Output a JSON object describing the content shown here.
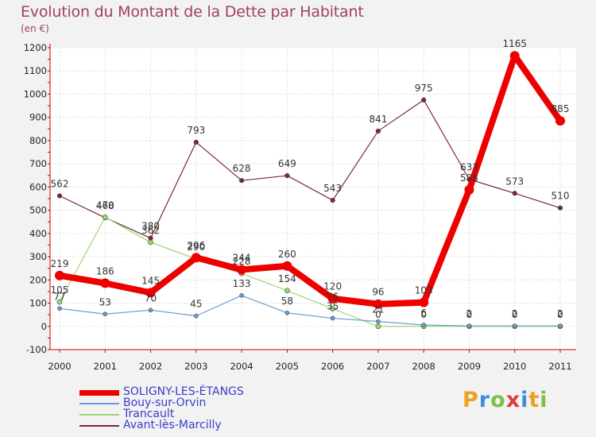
{
  "title": "Evolution du Montant de la Dette par Habitant",
  "unit": "(en €)",
  "brand": {
    "text": "Proxiti",
    "colors": [
      "#f0a020",
      "#3c8fd8",
      "#7cc04c",
      "#e03a3a",
      "#3c8fd8",
      "#f0a020",
      "#7cc04c"
    ]
  },
  "chart_data": {
    "type": "line",
    "x": [
      "2000",
      "2001",
      "2002",
      "2003",
      "2004",
      "2005",
      "2006",
      "2007",
      "2008",
      "2009",
      "2010",
      "2011"
    ],
    "ylim": [
      -100,
      1200
    ],
    "yticks": [
      -100,
      0,
      100,
      200,
      300,
      400,
      500,
      600,
      700,
      800,
      900,
      1000,
      1100,
      1200
    ],
    "grid": true,
    "legend_position": "bottom-left",
    "series": [
      {
        "name": "Avant-lès-Marcilly",
        "color": "#7a2a32",
        "width": 1.2,
        "marker": 2.8,
        "values": [
          562,
          468,
          380,
          793,
          628,
          649,
          543,
          841,
          975,
          633,
          573,
          510
        ]
      },
      {
        "name": "Trancault",
        "color": "#9ad872",
        "width": 1.2,
        "marker": 3,
        "values": [
          105,
          470,
          362,
          290,
          228,
          154,
          76,
          0,
          0,
          0,
          0,
          0
        ]
      },
      {
        "name": "Bouy-sur-Orvin",
        "color": "#6a9ed0",
        "width": 1.2,
        "marker": 2.5,
        "values": [
          77,
          53,
          70,
          45,
          133,
          58,
          35,
          21,
          6,
          2,
          2,
          2
        ]
      },
      {
        "name": "SOLIGNY-LES-ÉTANGS",
        "color": "#ee0000",
        "width": 8,
        "marker": 6,
        "values": [
          219,
          186,
          145,
          296,
          244,
          260,
          120,
          96,
          103,
          588,
          1165,
          885
        ]
      }
    ],
    "labels": {
      "Avant-lès-Marcilly": [
        "562",
        "468",
        "380",
        "793",
        "628",
        "649",
        "543",
        "841",
        "975",
        "633",
        "573",
        "510"
      ],
      "Trancault": [
        "105",
        "470",
        "362",
        "290",
        "228",
        "154",
        "76",
        "0",
        "0",
        "0",
        "0",
        "0"
      ],
      "Bouy-sur-Orvin": [
        "77",
        "53",
        "70",
        "45",
        "133",
        "58",
        "35",
        "21",
        "6",
        "2",
        "2",
        "2"
      ],
      "SOLIGNY-LES-ÉTANGS": [
        "219",
        "186",
        "145",
        "296",
        "244",
        "260",
        "120",
        "96",
        "103",
        "588",
        "1165",
        "885"
      ]
    }
  },
  "legend": [
    {
      "label": "SOLIGNY-LES-ÉTANGS",
      "color": "#ee0000",
      "thickness": 7
    },
    {
      "label": "Bouy-sur-Orvin",
      "color": "#6a9ed0",
      "thickness": 2
    },
    {
      "label": "Trancault",
      "color": "#9ad872",
      "thickness": 2
    },
    {
      "label": "Avant-lès-Marcilly",
      "color": "#7a2a32",
      "thickness": 2
    }
  ]
}
